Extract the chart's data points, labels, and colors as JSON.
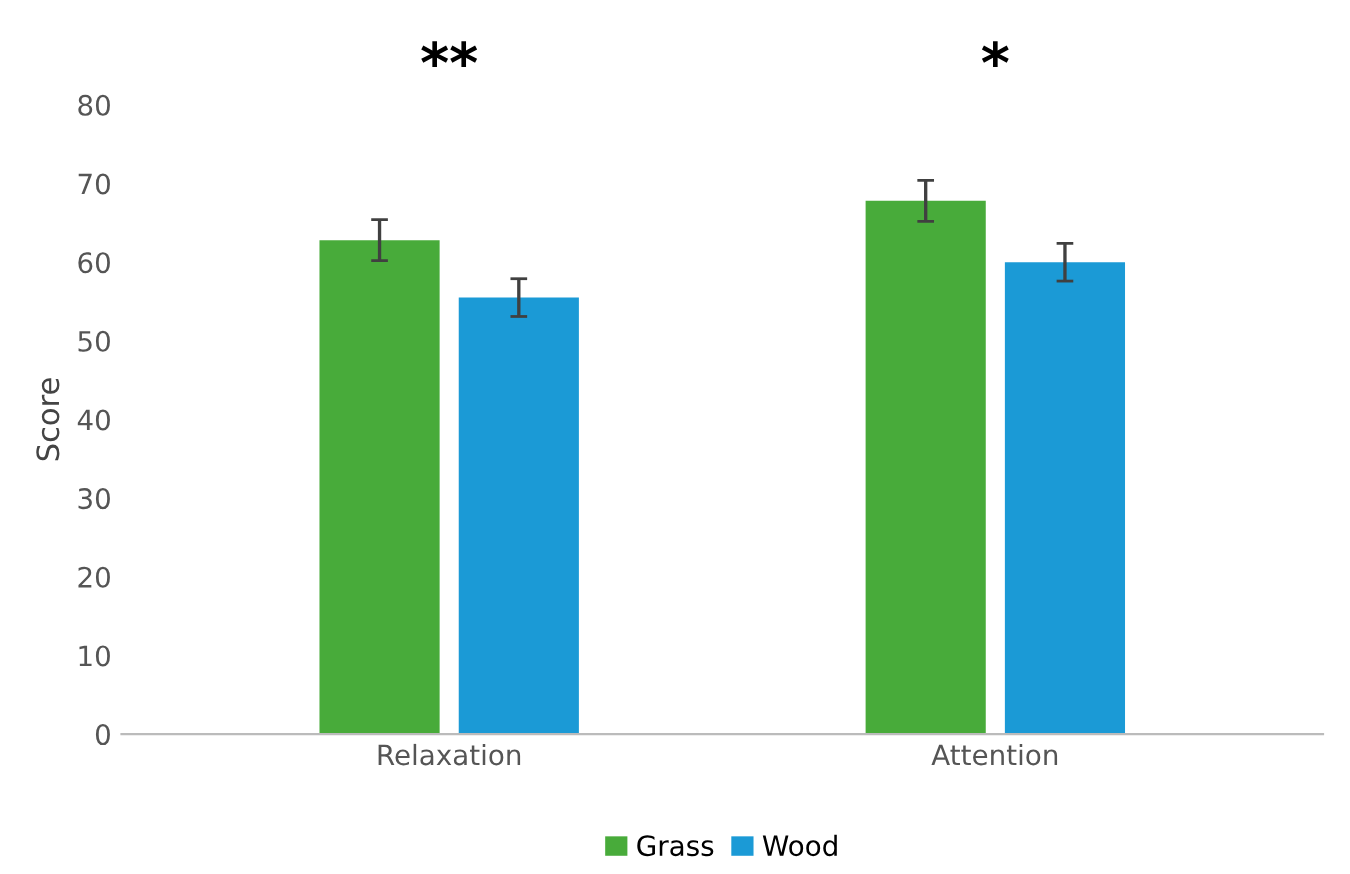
{
  "chart_data": {
    "type": "bar",
    "ylabel": "Score",
    "categories": [
      "Relaxation",
      "Attention"
    ],
    "series": [
      {
        "name": "Grass",
        "color": "#48ab3a",
        "values": [
          62.8,
          67.8
        ],
        "errors": [
          2.6,
          2.6
        ]
      },
      {
        "name": "Wood",
        "color": "#1b9ad6",
        "values": [
          55.5,
          60
        ],
        "errors": [
          2.4,
          2.4
        ]
      }
    ],
    "ylim": [
      0,
      80
    ],
    "yticks": [
      0,
      10,
      20,
      30,
      40,
      50,
      60,
      70,
      80
    ],
    "grid": false,
    "legend": "bottom",
    "annotations": [
      "**",
      "*"
    ]
  }
}
